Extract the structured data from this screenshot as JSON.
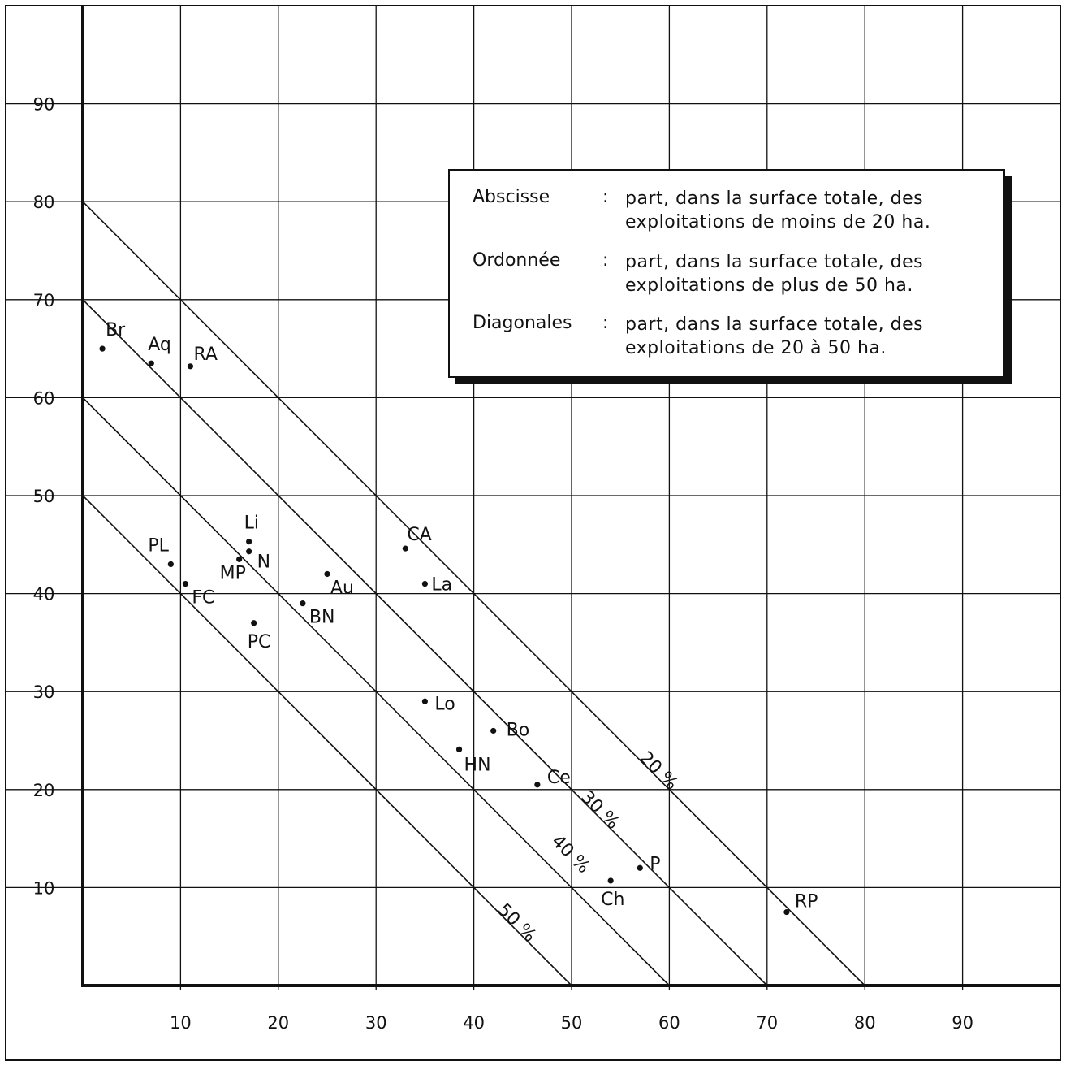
{
  "chart_data": {
    "type": "scatter",
    "xlim": [
      0,
      100
    ],
    "ylim": [
      0,
      100
    ],
    "x_ticks": [
      10,
      20,
      30,
      40,
      50,
      60,
      70,
      80,
      90
    ],
    "y_ticks": [
      10,
      20,
      30,
      40,
      50,
      60,
      70,
      80,
      90
    ],
    "x_tick_labels": [
      "10",
      "20",
      "30",
      "40",
      "50",
      "60",
      "70",
      "80",
      "90"
    ],
    "y_tick_labels": [
      "10",
      "20",
      "30",
      "40",
      "50",
      "60",
      "70",
      "80",
      "90"
    ],
    "grid": true,
    "points": [
      {
        "label": "Br",
        "x": 2,
        "y": 65
      },
      {
        "label": "Aq",
        "x": 7,
        "y": 63.5
      },
      {
        "label": "RA",
        "x": 11,
        "y": 63.2
      },
      {
        "label": "PL",
        "x": 9,
        "y": 43
      },
      {
        "label": "FC",
        "x": 10.5,
        "y": 41
      },
      {
        "label": "Li",
        "x": 17,
        "y": 45.3
      },
      {
        "label": "N",
        "x": 17,
        "y": 44.3
      },
      {
        "label": "MP",
        "x": 16,
        "y": 43.5
      },
      {
        "label": "PC",
        "x": 17.5,
        "y": 37
      },
      {
        "label": "Au",
        "x": 25,
        "y": 42
      },
      {
        "label": "BN",
        "x": 22.5,
        "y": 39
      },
      {
        "label": "CA",
        "x": 33,
        "y": 44.6
      },
      {
        "label": "La",
        "x": 35,
        "y": 41
      },
      {
        "label": "Lo",
        "x": 35,
        "y": 29
      },
      {
        "label": "Bo",
        "x": 42,
        "y": 26
      },
      {
        "label": "HN",
        "x": 38.5,
        "y": 24.1
      },
      {
        "label": "Ce",
        "x": 46.5,
        "y": 20.5
      },
      {
        "label": "P",
        "x": 57,
        "y": 12
      },
      {
        "label": "Ch",
        "x": 54,
        "y": 10.7
      },
      {
        "label": "RP",
        "x": 72,
        "y": 7.5
      }
    ],
    "diagonals": [
      {
        "label": "20 %",
        "sum": 80
      },
      {
        "label": "30 %",
        "sum": 70
      },
      {
        "label": "40 %",
        "sum": 60
      },
      {
        "label": "50 %",
        "sum": 50
      }
    ]
  },
  "legend": {
    "rows": [
      {
        "term": "Abscisse",
        "colon": ":",
        "line1": "part, dans la surface totale, des",
        "line2": "exploitations de moins de 20 ha."
      },
      {
        "term": "Ordonnée",
        "colon": ":",
        "line1": "part, dans la surface totale, des",
        "line2": "exploitations de plus de 50 ha."
      },
      {
        "term": "Diagonales",
        "colon": ":",
        "line1": "part, dans la surface totale, des",
        "line2": "exploitations de 20 à 50 ha."
      }
    ]
  },
  "colors": {
    "ink": "#111111",
    "grid": "#111111",
    "background": "#ffffff"
  }
}
